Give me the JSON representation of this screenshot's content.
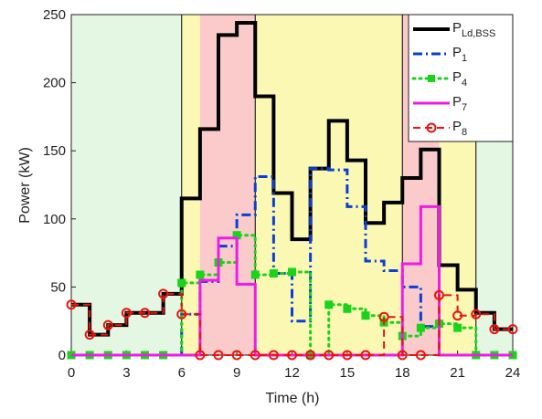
{
  "chart_data": {
    "type": "step",
    "xlabel": "Time (h)",
    "ylabel": "Power (kW)",
    "xlim": [
      0,
      24
    ],
    "xticks": [
      0,
      3,
      6,
      9,
      12,
      15,
      18,
      21,
      24
    ],
    "ylim": [
      0,
      250
    ],
    "yticks": [
      0,
      50,
      100,
      150,
      200,
      250
    ],
    "regions": [
      {
        "start": 0,
        "end": 6,
        "color": "#e3f7e3"
      },
      {
        "start": 6,
        "end": 7,
        "color": "#fbf8b4"
      },
      {
        "start": 7,
        "end": 10,
        "color": "#fbcaca"
      },
      {
        "start": 10,
        "end": 18,
        "color": "#fbf8b4"
      },
      {
        "start": 18,
        "end": 20,
        "color": "#fbcaca"
      },
      {
        "start": 20,
        "end": 22,
        "color": "#fbf8b4"
      },
      {
        "start": 22,
        "end": 24,
        "color": "#e3f7e3"
      }
    ],
    "boundaries": [
      6,
      10,
      18,
      22
    ],
    "x": [
      0,
      1,
      2,
      3,
      4,
      5,
      6,
      7,
      8,
      9,
      10,
      11,
      12,
      13,
      14,
      15,
      16,
      17,
      18,
      19,
      20,
      21,
      22,
      23,
      24
    ],
    "legend": "upper right",
    "series": [
      {
        "name": "P",
        "subscript": "Ld,BSS",
        "color": "#000000",
        "width": 4,
        "dash": "solid",
        "marker": "none",
        "values": [
          37,
          15,
          22,
          31,
          31,
          45,
          115,
          166,
          235,
          244,
          190,
          119,
          85,
          137,
          172,
          143,
          97,
          112,
          130,
          151,
          66,
          48,
          31,
          19,
          19
        ]
      },
      {
        "name": "P",
        "subscript": "1",
        "color": "#0a3fd6",
        "width": 3,
        "dash": "dashdot",
        "marker": "none",
        "values": [
          0,
          0,
          0,
          0,
          0,
          0,
          30,
          54,
          80,
          103,
          131,
          60,
          25,
          137,
          136,
          109,
          69,
          62,
          50,
          21,
          0,
          0,
          0,
          0,
          0
        ]
      },
      {
        "name": "P",
        "subscript": "4",
        "color": "#19d419",
        "width": 3,
        "dash": "dotted",
        "marker": "square",
        "values": [
          0,
          0,
          0,
          0,
          0,
          0,
          53,
          59,
          68,
          88,
          59,
          60,
          61,
          0,
          37,
          34,
          29,
          24,
          14,
          20,
          23,
          20,
          0,
          0,
          0
        ]
      },
      {
        "name": "P",
        "subscript": "7",
        "color": "#ee1ce6",
        "width": 3,
        "dash": "solid",
        "marker": "none",
        "values": [
          0,
          0,
          0,
          0,
          0,
          0,
          0,
          55,
          86,
          52,
          0,
          0,
          0,
          0,
          0,
          0,
          0,
          0,
          67,
          109,
          0,
          0,
          0,
          0,
          0
        ]
      },
      {
        "name": "P",
        "subscript": "8",
        "color": "#e8150c",
        "width": 2,
        "dash": "dashed",
        "marker": "circle",
        "values": [
          37,
          15,
          22,
          31,
          31,
          45,
          30,
          0,
          0,
          0,
          0,
          0,
          0,
          0,
          0,
          0,
          0,
          28,
          0,
          0,
          44,
          29,
          30,
          19,
          19
        ]
      }
    ]
  }
}
